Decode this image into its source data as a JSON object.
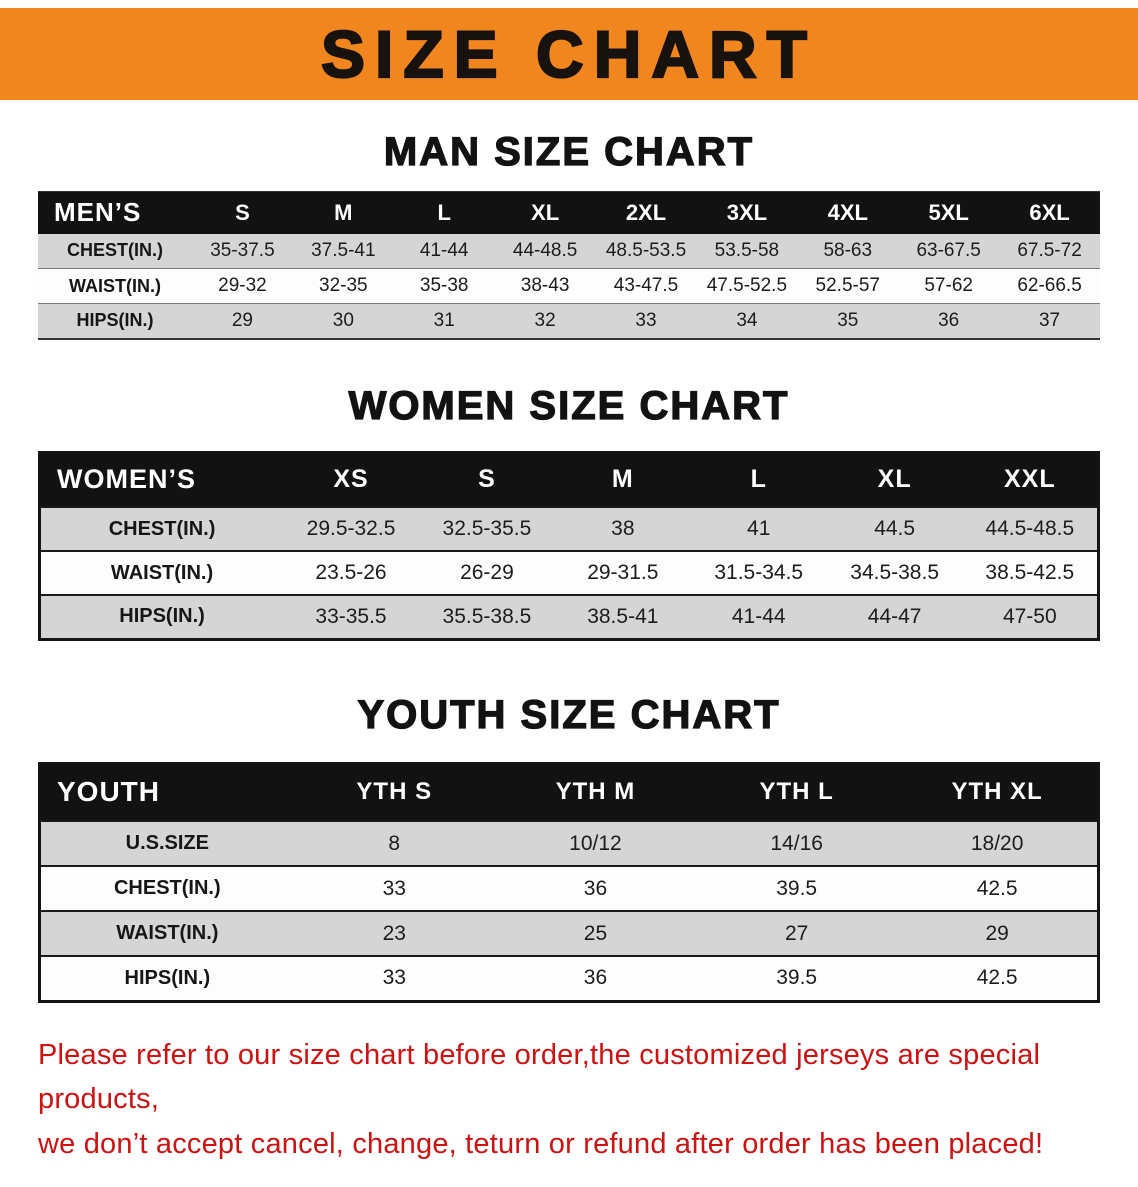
{
  "banner": {
    "title": "SIZE CHART",
    "bg_color": "#f1861e",
    "text_color": "#17120e"
  },
  "colors": {
    "table_header_bg": "#121212",
    "table_header_text": "#ffffff",
    "row_gray": "#d5d5d5",
    "row_white": "#fdfdfd",
    "footer_red": "#ce1111"
  },
  "men": {
    "heading": "MAN SIZE CHART",
    "header": [
      "MEN’S",
      "S",
      "M",
      "L",
      "XL",
      "2XL",
      "3XL",
      "4XL",
      "5XL",
      "6XL"
    ],
    "rows": [
      {
        "label": "CHEST(IN.)",
        "values": [
          "35-37.5",
          "37.5-41",
          "41-44",
          "44-48.5",
          "48.5-53.5",
          "53.5-58",
          "58-63",
          "63-67.5",
          "67.5-72"
        ]
      },
      {
        "label": "WAIST(IN.)",
        "values": [
          "29-32",
          "32-35",
          "35-38",
          "38-43",
          "43-47.5",
          "47.5-52.5",
          "52.5-57",
          "57-62",
          "62-66.5"
        ]
      },
      {
        "label": "HIPS(IN.)",
        "values": [
          "29",
          "30",
          "31",
          "32",
          "33",
          "34",
          "35",
          "36",
          "37"
        ]
      }
    ]
  },
  "women": {
    "heading": "WOMEN SIZE CHART",
    "header": [
      "WOMEN’S",
      "XS",
      "S",
      "M",
      "L",
      "XL",
      "XXL"
    ],
    "rows": [
      {
        "label": "CHEST(IN.)",
        "values": [
          "29.5-32.5",
          "32.5-35.5",
          "38",
          "41",
          "44.5",
          "44.5-48.5"
        ]
      },
      {
        "label": "WAIST(IN.)",
        "values": [
          "23.5-26",
          "26-29",
          "29-31.5",
          "31.5-34.5",
          "34.5-38.5",
          "38.5-42.5"
        ]
      },
      {
        "label": "HIPS(IN.)",
        "values": [
          "33-35.5",
          "35.5-38.5",
          "38.5-41",
          "41-44",
          "44-47",
          "47-50"
        ]
      }
    ]
  },
  "youth": {
    "heading": "YOUTH SIZE CHART",
    "header": [
      "YOUTH",
      "YTH S",
      "YTH M",
      "YTH L",
      "YTH XL"
    ],
    "rows": [
      {
        "label": "U.S.SIZE",
        "values": [
          "8",
          "10/12",
          "14/16",
          "18/20"
        ]
      },
      {
        "label": "CHEST(IN.)",
        "values": [
          "33",
          "36",
          "39.5",
          "42.5"
        ]
      },
      {
        "label": "WAIST(IN.)",
        "values": [
          "23",
          "25",
          "27",
          "29"
        ]
      },
      {
        "label": "HIPS(IN.)",
        "values": [
          "33",
          "36",
          "39.5",
          "42.5"
        ]
      }
    ]
  },
  "footer": {
    "line1": "Please refer to our size chart before order,the customized jerseys are special products,",
    "line2": "we don’t accept cancel, change, teturn or refund after order has been placed!"
  }
}
